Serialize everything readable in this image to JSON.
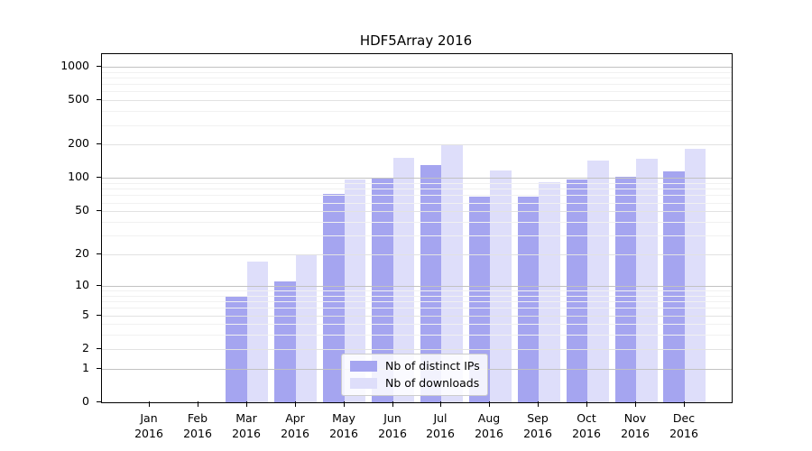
{
  "chart_data": {
    "type": "bar",
    "title": "HDF5Array 2016",
    "year": "2016",
    "categories": [
      "Jan",
      "Feb",
      "Mar",
      "Apr",
      "May",
      "Jun",
      "Jul",
      "Aug",
      "Sep",
      "Oct",
      "Nov",
      "Dec"
    ],
    "series": [
      {
        "name": "Nb of distinct IPs",
        "color": "#a5a5f0",
        "values": [
          0,
          0,
          8,
          11,
          72,
          100,
          130,
          68,
          68,
          97,
          102,
          115
        ]
      },
      {
        "name": "Nb of downloads",
        "color": "#dedefa",
        "values": [
          0,
          0,
          17,
          20,
          97,
          152,
          200,
          117,
          92,
          144,
          149,
          183
        ]
      }
    ],
    "yticks": [
      0,
      1,
      2,
      5,
      10,
      20,
      50,
      100,
      200,
      500,
      1000
    ],
    "yscale": "log1p",
    "ylim": [
      0,
      1300
    ],
    "xlabel": "",
    "ylabel": "",
    "grid": true,
    "legend_position": "bottom-center"
  }
}
